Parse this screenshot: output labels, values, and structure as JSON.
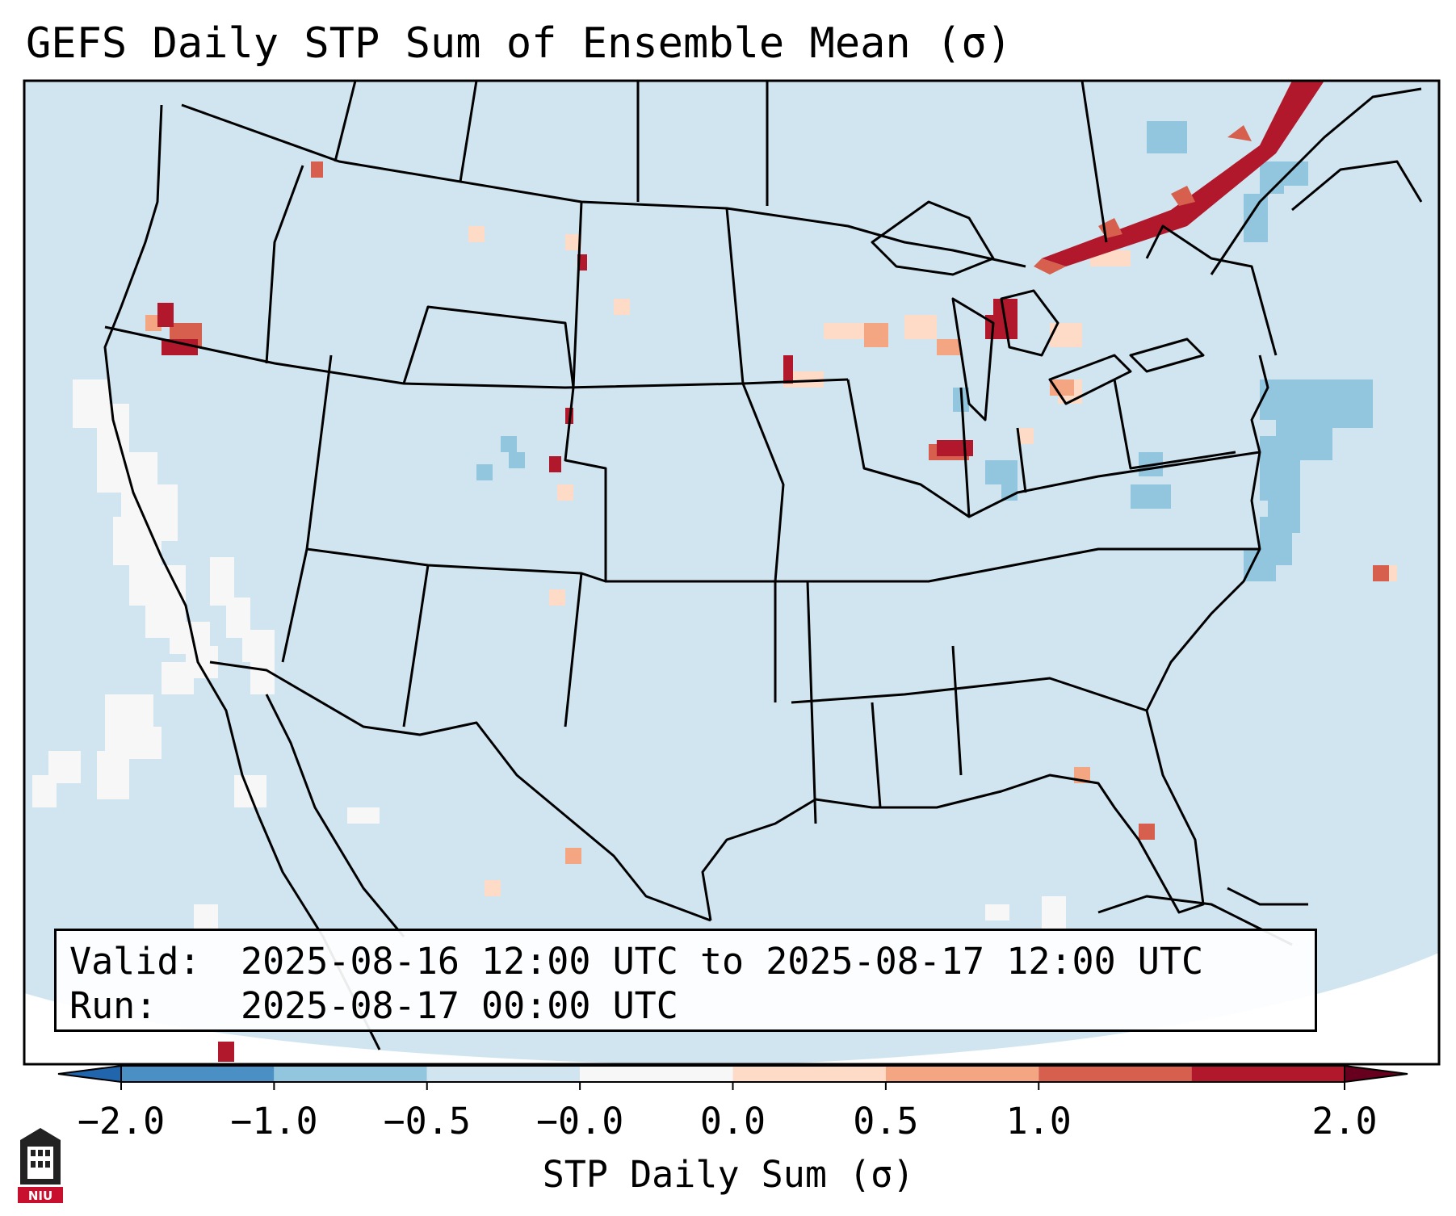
{
  "title": "GEFS Daily STP Sum of Ensemble Mean (σ)",
  "info": {
    "valid_label": "Valid:",
    "valid_value": "2025-08-16 12:00 UTC to 2025-08-17 12:00 UTC",
    "run_label": "Run:",
    "run_value": "2025-08-17 00:00 UTC"
  },
  "colorbar": {
    "label": "STP Daily Sum (σ)",
    "ticks": [
      "−2.0",
      "−1.0",
      "−0.5",
      "−0.0",
      "0.0",
      "0.5",
      "1.0",
      "2.0"
    ],
    "colors": [
      "#4a90c4",
      "#92c5de",
      "#d1e5f0",
      "#f7f7f7",
      "#fddbc7",
      "#f4a582",
      "#d6604d",
      "#b2182b"
    ],
    "extend": "both"
  },
  "map": {
    "region": "CONUS",
    "background_color": "#d1e5f0",
    "features": [
      "coastlines",
      "state-borders",
      "country-borders"
    ]
  },
  "logo_text": "NIU"
}
